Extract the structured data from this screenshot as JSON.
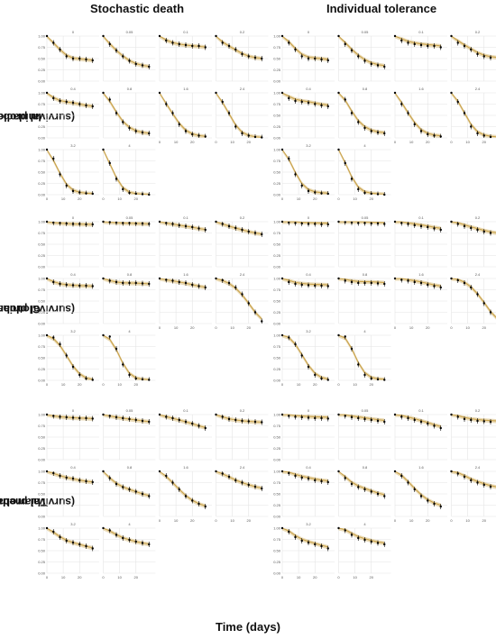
{
  "labels": {
    "col_stochastic": "Stochastic death",
    "col_individual": "Individual tolerance",
    "row_imidacloprid_1": "Imidacloprid",
    "row_imidacloprid_2": "(survival probability)",
    "row_clothianidin_1": "Clothianidin",
    "row_clothianidin_2": "(survival probability)",
    "row_thiamethoxam_1": "Thiamethoxam",
    "row_thiamethoxam_2": "(survival probability)",
    "xlabel": "Time (days)"
  },
  "colors": {
    "fit_line": "#c9a24a",
    "fit_band": "#e6d3a8",
    "points": "#000000",
    "grid": "#e4e4e4"
  },
  "chart_data": {
    "type": "line",
    "concentrations": [
      "0",
      "0.05",
      "0.1",
      "0.2",
      "0.4",
      "0.8",
      "1.6",
      "2.4",
      "3.2",
      "4"
    ],
    "x": [
      0,
      4,
      8,
      12,
      16,
      20,
      24,
      28
    ],
    "x_ticks": [
      0,
      10,
      20
    ],
    "y_ticks": [
      "0.00",
      "0.25",
      "0.50",
      "0.75",
      "1.00"
    ],
    "ylim": [
      0,
      1
    ],
    "xlim": [
      0,
      32
    ],
    "chemicals": [
      {
        "name": "Imidacloprid",
        "observed": [
          [
            1.0,
            0.85,
            0.7,
            0.55,
            0.5,
            0.5,
            0.48,
            0.46
          ],
          [
            1.0,
            0.82,
            0.68,
            0.55,
            0.45,
            0.38,
            0.35,
            0.32
          ],
          [
            1.0,
            0.9,
            0.85,
            0.82,
            0.8,
            0.78,
            0.78,
            0.75
          ],
          [
            1.0,
            0.85,
            0.78,
            0.7,
            0.6,
            0.55,
            0.52,
            0.5
          ],
          [
            1.0,
            0.88,
            0.82,
            0.8,
            0.78,
            0.75,
            0.72,
            0.7
          ],
          [
            1.0,
            0.85,
            0.55,
            0.35,
            0.22,
            0.15,
            0.12,
            0.1
          ],
          [
            1.0,
            0.75,
            0.55,
            0.3,
            0.15,
            0.08,
            0.05,
            0.03
          ],
          [
            1.0,
            0.8,
            0.55,
            0.25,
            0.1,
            0.05,
            0.02,
            0.01
          ],
          [
            1.0,
            0.8,
            0.45,
            0.2,
            0.08,
            0.05,
            0.03,
            0.02
          ],
          [
            1.0,
            0.7,
            0.35,
            0.12,
            0.04,
            0.02,
            0.01,
            0.0
          ]
        ]
      },
      {
        "name": "Clothianidin",
        "observed": [
          [
            1.0,
            0.98,
            0.97,
            0.96,
            0.95,
            0.95,
            0.94,
            0.94
          ],
          [
            1.0,
            0.99,
            0.98,
            0.97,
            0.97,
            0.96,
            0.96,
            0.95
          ],
          [
            1.0,
            0.97,
            0.95,
            0.92,
            0.9,
            0.88,
            0.85,
            0.82
          ],
          [
            1.0,
            0.95,
            0.9,
            0.86,
            0.82,
            0.78,
            0.75,
            0.72
          ],
          [
            1.0,
            0.92,
            0.88,
            0.86,
            0.85,
            0.84,
            0.84,
            0.83
          ],
          [
            1.0,
            0.95,
            0.92,
            0.9,
            0.9,
            0.9,
            0.89,
            0.88
          ],
          [
            1.0,
            0.97,
            0.95,
            0.92,
            0.9,
            0.86,
            0.83,
            0.8
          ],
          [
            1.0,
            0.96,
            0.9,
            0.8,
            0.65,
            0.45,
            0.25,
            0.05
          ],
          [
            1.0,
            0.95,
            0.8,
            0.55,
            0.3,
            0.12,
            0.04,
            0.01
          ],
          [
            1.0,
            0.97,
            0.7,
            0.35,
            0.12,
            0.04,
            0.02,
            0.01
          ]
        ]
      },
      {
        "name": "Thiamethoxam",
        "observed": [
          [
            1.0,
            0.97,
            0.95,
            0.94,
            0.93,
            0.92,
            0.92,
            0.91
          ],
          [
            1.0,
            0.97,
            0.94,
            0.92,
            0.9,
            0.88,
            0.86,
            0.84
          ],
          [
            1.0,
            0.95,
            0.92,
            0.88,
            0.84,
            0.8,
            0.75,
            0.7
          ],
          [
            1.0,
            0.95,
            0.9,
            0.88,
            0.86,
            0.85,
            0.84,
            0.83
          ],
          [
            1.0,
            0.96,
            0.9,
            0.86,
            0.84,
            0.8,
            0.78,
            0.76
          ],
          [
            1.0,
            0.85,
            0.72,
            0.65,
            0.6,
            0.55,
            0.5,
            0.45
          ],
          [
            1.0,
            0.9,
            0.75,
            0.6,
            0.45,
            0.35,
            0.28,
            0.22
          ],
          [
            1.0,
            0.95,
            0.88,
            0.8,
            0.75,
            0.7,
            0.66,
            0.62
          ],
          [
            1.0,
            0.92,
            0.8,
            0.72,
            0.68,
            0.64,
            0.6,
            0.55
          ],
          [
            1.0,
            0.95,
            0.85,
            0.78,
            0.74,
            0.7,
            0.67,
            0.64
          ]
        ]
      }
    ]
  }
}
